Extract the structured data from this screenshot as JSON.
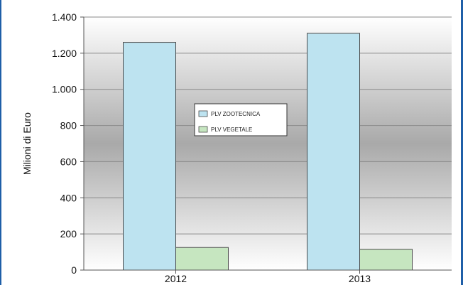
{
  "chart_data": {
    "type": "bar",
    "categories": [
      "2012",
      "2013"
    ],
    "series": [
      {
        "name": "PLV ZOOTECNICA",
        "values": [
          1260,
          1310
        ],
        "color": "#bde3f0"
      },
      {
        "name": "PLV VEGETALE",
        "values": [
          125,
          115
        ],
        "color": "#c6e6c0"
      }
    ],
    "xlabel": "",
    "ylabel": "Milioni di Euro",
    "ylim": [
      0,
      1400
    ],
    "yticks": [
      0,
      200,
      400,
      600,
      800,
      1000,
      1200,
      1400
    ],
    "ytick_labels": [
      "0",
      "200",
      "400",
      "600",
      "800",
      "1.000",
      "1.200",
      "1.400"
    ],
    "grid": true,
    "legend_position": "center"
  }
}
